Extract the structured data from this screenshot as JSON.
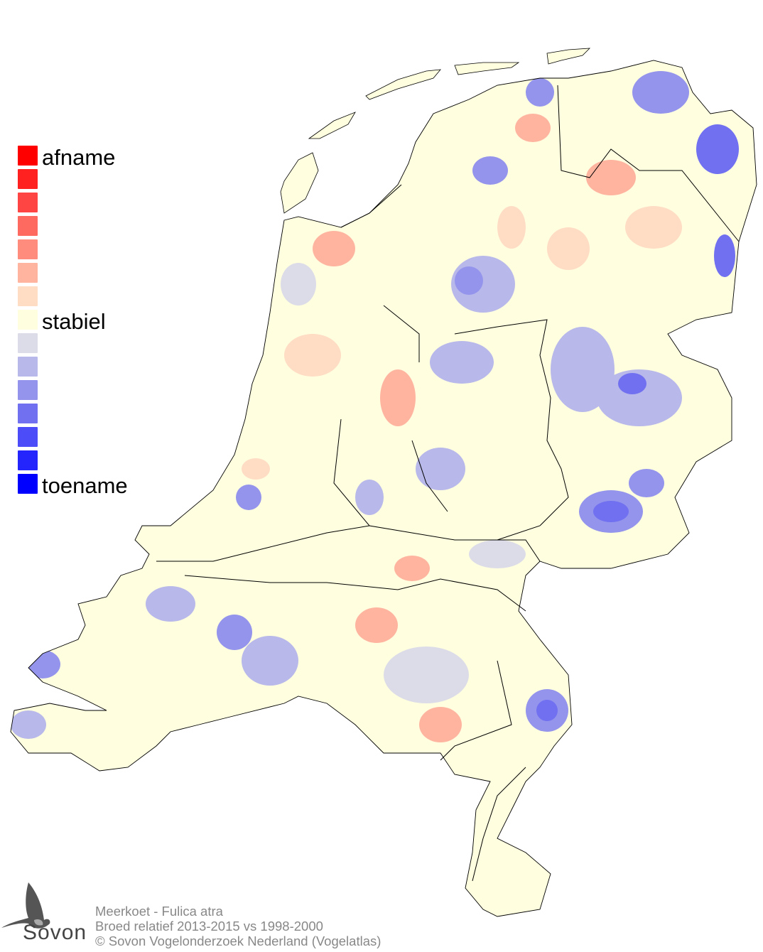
{
  "legend": {
    "labels": {
      "top": "afname",
      "middle": "stabiel",
      "bottom": "toename"
    },
    "colors": [
      "#ff0000",
      "#ff2020",
      "#ff4444",
      "#ff6a60",
      "#ff8c7c",
      "#ffb4a0",
      "#ffdcc4",
      "#ffffe0",
      "#dcdce8",
      "#b8b8ea",
      "#9494ec",
      "#7070f0",
      "#4c4cf8",
      "#2424fc",
      "#0000ff"
    ]
  },
  "credits": {
    "species": "Meerkoet - Fulica atra",
    "subtitle": "Broed relatief 2013-2015 vs 1998-2000",
    "copyright": "© Sovon Vogelonderzoek Nederland (Vogelatlas)"
  },
  "logo": {
    "text": "Sovon",
    "icon": "swallow-icon"
  },
  "map": {
    "region": "Nederland",
    "base_color": "#ffffe0",
    "border_color": "#000000"
  }
}
